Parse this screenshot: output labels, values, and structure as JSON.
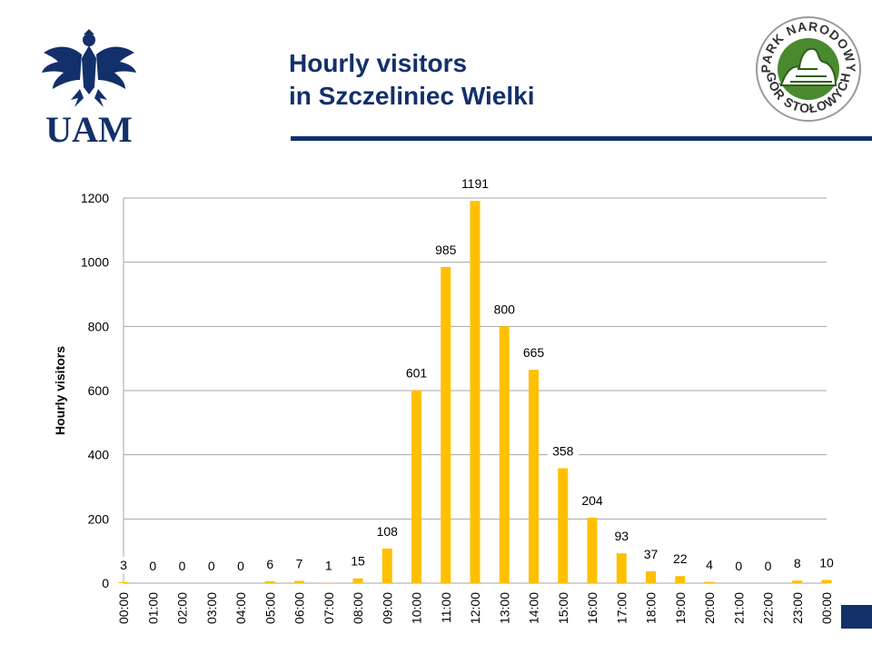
{
  "header": {
    "title_line1": "Hourly visitors",
    "title_line2": "in Szczeliniec Wielki",
    "accent_color": "#13306b"
  },
  "logos": {
    "left": {
      "icon": "eagle-crest-icon",
      "text": "UAM"
    },
    "right": {
      "icon": "rock-formation-icon",
      "ring_top": "PARK NARODOWY",
      "ring_bottom": "GÓR STOŁOWYCH"
    }
  },
  "chart_data": {
    "type": "bar",
    "title": "",
    "xlabel": "",
    "ylabel": "Hourly visitors",
    "ylim": [
      0,
      1200
    ],
    "yticks": [
      0,
      200,
      400,
      600,
      800,
      1000,
      1200
    ],
    "grid": true,
    "legend": "none",
    "bar_color": "#ffc000",
    "categories": [
      "00:00",
      "01:00",
      "02:00",
      "03:00",
      "04:00",
      "05:00",
      "06:00",
      "07:00",
      "08:00",
      "09:00",
      "10:00",
      "11:00",
      "12:00",
      "13:00",
      "14:00",
      "15:00",
      "16:00",
      "17:00",
      "18:00",
      "19:00",
      "20:00",
      "21:00",
      "22:00",
      "23:00",
      "00:00"
    ],
    "values": [
      3,
      0,
      0,
      0,
      0,
      6,
      7,
      1,
      15,
      108,
      601,
      985,
      1191,
      800,
      665,
      358,
      204,
      93,
      37,
      22,
      4,
      0,
      0,
      8,
      10
    ]
  }
}
